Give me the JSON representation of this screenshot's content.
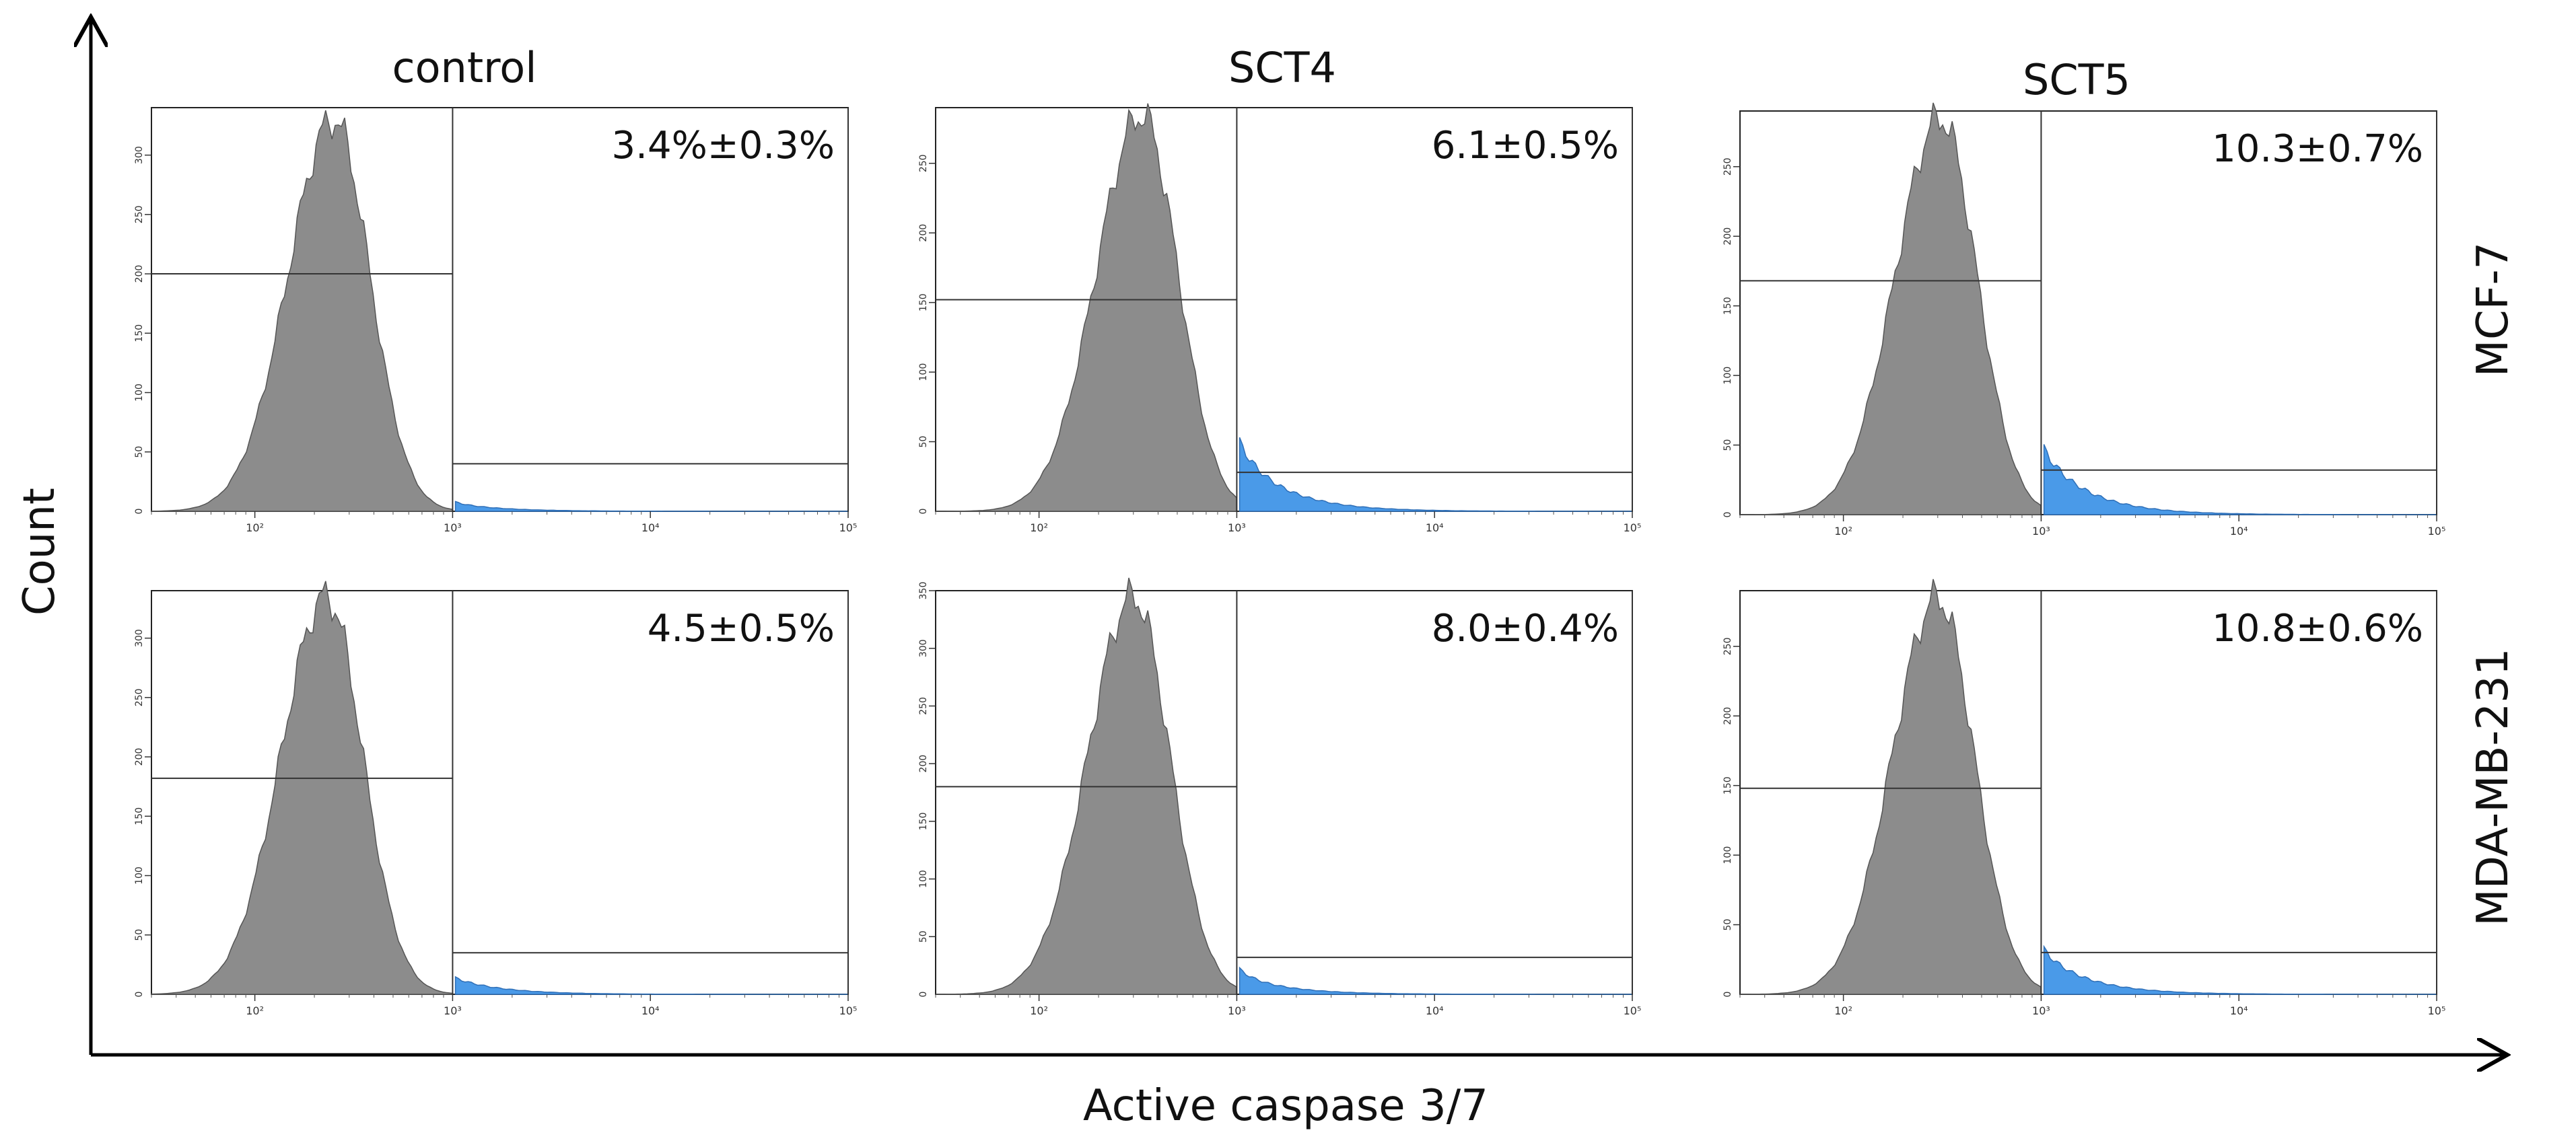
{
  "figure": {
    "y_axis_label": "Count",
    "x_axis_label": "Active caspase 3/7",
    "columns": [
      "control",
      "SCT4",
      "SCT5"
    ],
    "rows": [
      "MCF-7",
      "MDA-MB-231"
    ],
    "colors": {
      "negative": "#8c8c8c",
      "positive": "#4a9ae8",
      "line": "#333333"
    }
  },
  "chart_data": [
    {
      "type": "area",
      "title": "control",
      "row": "MCF-7",
      "annotation": "3.4%±0.3%",
      "xscale": "log",
      "xlim": [
        30,
        100000
      ],
      "ylim": [
        0,
        340
      ],
      "x_ticks": [
        "10²",
        "10³",
        "10⁴",
        "10⁵"
      ],
      "y_ticks": [
        "50",
        "100",
        "150",
        "200",
        "250",
        "300"
      ],
      "gate_threshold": 1000,
      "gate_left_level": 200,
      "gate_right_level": 40,
      "peak_center": 250,
      "peak_height": 330,
      "positive_height": 7
    },
    {
      "type": "area",
      "title": "SCT4",
      "row": "MCF-7",
      "annotation": "6.1±0.5%",
      "xscale": "log",
      "xlim": [
        30,
        100000
      ],
      "ylim": [
        0,
        290
      ],
      "x_ticks": [
        "10²",
        "10³",
        "10⁴",
        "10⁵"
      ],
      "y_ticks": [
        "50",
        "100",
        "150",
        "200",
        "250"
      ],
      "gate_threshold": 1000,
      "gate_left_level": 152,
      "gate_right_level": 28,
      "peak_center": 330,
      "peak_height": 285,
      "positive_height": 45
    },
    {
      "type": "area",
      "title": "SCT5",
      "row": "MCF-7",
      "annotation": "10.3±0.7%",
      "xscale": "log",
      "xlim": [
        30,
        100000
      ],
      "ylim": [
        0,
        290
      ],
      "x_ticks": [
        "10²",
        "10³",
        "10⁴",
        "10⁵"
      ],
      "y_ticks": [
        "50",
        "100",
        "150",
        "200",
        "250"
      ],
      "gate_threshold": 1000,
      "gate_left_level": 168,
      "gate_right_level": 32,
      "peak_center": 310,
      "peak_height": 285,
      "positive_height": 45
    },
    {
      "type": "area",
      "title": "control",
      "row": "MDA-MB-231",
      "annotation": "4.5±0.5%",
      "xscale": "log",
      "xlim": [
        30,
        100000
      ],
      "ylim": [
        0,
        340
      ],
      "x_ticks": [
        "10²",
        "10³",
        "10⁴",
        "10⁵"
      ],
      "y_ticks": [
        "50",
        "100",
        "150",
        "200",
        "250",
        "300"
      ],
      "gate_threshold": 1000,
      "gate_left_level": 182,
      "gate_right_level": 35,
      "peak_center": 230,
      "peak_height": 335,
      "positive_height": 14
    },
    {
      "type": "area",
      "title": "SCT4",
      "row": "MDA-MB-231",
      "annotation": "8.0±0.4%",
      "xscale": "log",
      "xlim": [
        30,
        100000
      ],
      "ylim": [
        0,
        350
      ],
      "x_ticks": [
        "10²",
        "10³",
        "10⁴",
        "10⁵"
      ],
      "y_ticks": [
        "50",
        "100",
        "150",
        "200",
        "250",
        "300",
        "350"
      ],
      "gate_threshold": 1000,
      "gate_left_level": 180,
      "gate_right_level": 32,
      "peak_center": 300,
      "peak_height": 345,
      "positive_height": 18
    },
    {
      "type": "area",
      "title": "SCT5",
      "row": "MDA-MB-231",
      "annotation": "10.8±0.6%",
      "xscale": "log",
      "xlim": [
        30,
        100000
      ],
      "ylim": [
        0,
        290
      ],
      "x_ticks": [
        "10²",
        "10³",
        "10⁴",
        "10⁵"
      ],
      "y_ticks": [
        "50",
        "100",
        "150",
        "200",
        "250"
      ],
      "gate_threshold": 1000,
      "gate_left_level": 148,
      "gate_right_level": 30,
      "peak_center": 300,
      "peak_height": 285,
      "positive_height": 30
    }
  ]
}
